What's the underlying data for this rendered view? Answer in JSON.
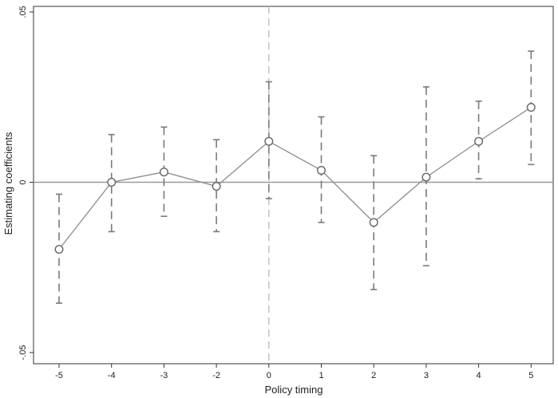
{
  "chart_data": {
    "type": "scatter",
    "xlabel": "Policy timing",
    "ylabel": "Estimating coefficients",
    "categories": [
      "-5",
      "-4",
      "-3",
      "-2",
      "0",
      "1",
      "2",
      "3",
      "4",
      "5"
    ],
    "series": [
      {
        "points": [
          {
            "x": "-5",
            "y": -0.0197,
            "lo": -0.0355,
            "hi": -0.0035
          },
          {
            "x": "-4",
            "y": 0.0,
            "lo": -0.0145,
            "hi": 0.014
          },
          {
            "x": "-3",
            "y": 0.003,
            "lo": -0.01,
            "hi": 0.0162
          },
          {
            "x": "-2",
            "y": -0.0012,
            "lo": -0.0145,
            "hi": 0.0125
          },
          {
            "x": "0",
            "y": 0.012,
            "lo": -0.0048,
            "hi": 0.0295
          },
          {
            "x": "1",
            "y": 0.0035,
            "lo": -0.0118,
            "hi": 0.0192
          },
          {
            "x": "2",
            "y": -0.0118,
            "lo": -0.0315,
            "hi": 0.0078
          },
          {
            "x": "3",
            "y": 0.0015,
            "lo": -0.0245,
            "hi": 0.028
          },
          {
            "x": "4",
            "y": 0.012,
            "lo": 0.001,
            "hi": 0.0238
          },
          {
            "x": "5",
            "y": 0.022,
            "lo": 0.0052,
            "hi": 0.0385
          }
        ]
      }
    ],
    "ylim": [
      -0.05,
      0.05
    ],
    "yticks": [
      {
        "value": 0.05,
        "label": ".05"
      },
      {
        "value": 0,
        "label": "0"
      },
      {
        "value": -0.05,
        "label": "-.05"
      }
    ],
    "reference_lines": {
      "horizontal_y": 0,
      "vertical_at_category": "0"
    },
    "grid": false,
    "colors": {
      "series": "#8c8c8c",
      "marker": "#666666",
      "error_bar": "#7a7a7a",
      "zero_line": "#9a9a9a",
      "policy_line": "#bdbdbd",
      "axis": "#333333"
    }
  }
}
